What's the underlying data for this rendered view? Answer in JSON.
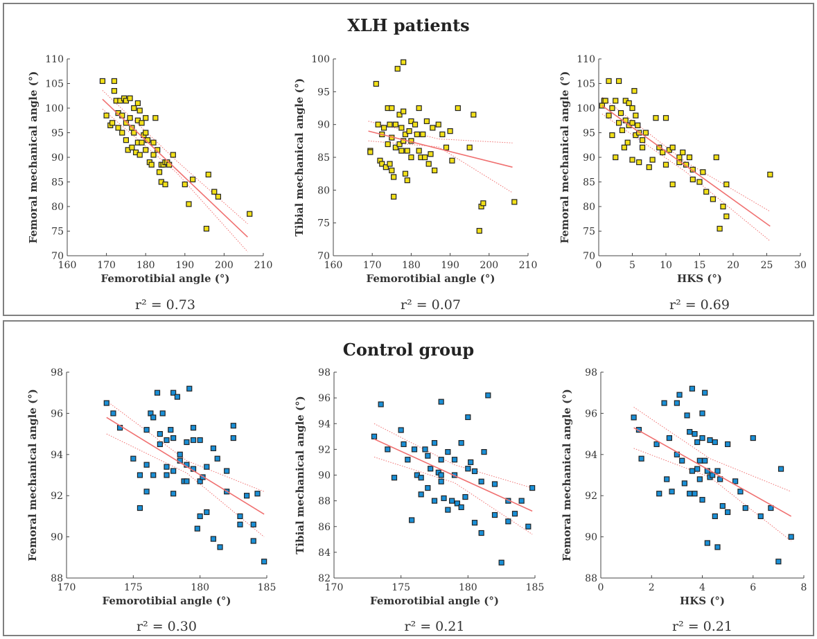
{
  "groups": {
    "xlh_title": "XLH patients",
    "control_title": "Control group"
  },
  "colors": {
    "xlh_marker": "#f2e019",
    "control_marker": "#1a8fd6",
    "regression_line": "#f07070",
    "frame": "#7f7f7f"
  },
  "chart_data": [
    {
      "type": "scatter",
      "group": "XLH patients",
      "xlabel": "Femorotibial angle (°)",
      "ylabel": "Femoral mechanical angle (°)",
      "xlim": [
        160,
        210
      ],
      "ylim": [
        70,
        110
      ],
      "xticks": [
        160,
        170,
        180,
        190,
        200,
        210
      ],
      "yticks": [
        70,
        75,
        80,
        85,
        90,
        95,
        100,
        105,
        110
      ],
      "r2": "r² = 0.73",
      "marker_color": "#f2e019",
      "fit": {
        "x0": 169,
        "y0": 101.8,
        "x1": 206,
        "y1": 73.8
      },
      "ci_upper": [
        [
          169,
          103.6
        ],
        [
          188,
          89.2
        ],
        [
          206,
          76.5
        ]
      ],
      "ci_lower": [
        [
          169,
          99.8
        ],
        [
          188,
          86.8
        ],
        [
          206,
          70.8
        ]
      ],
      "x": [
        169,
        170,
        171,
        171.5,
        172,
        172,
        172.5,
        173,
        173,
        173.5,
        174,
        174,
        174.5,
        175,
        175,
        175,
        175.5,
        176,
        176,
        176.5,
        176.5,
        177,
        177,
        177.5,
        178,
        178,
        178,
        178.5,
        178.5,
        179,
        179,
        179.5,
        180,
        180,
        180,
        180.5,
        181,
        181.5,
        182,
        182,
        182.5,
        183,
        183.5,
        184,
        184,
        184.5,
        185,
        185,
        185.5,
        186,
        187,
        190,
        191,
        192,
        195.5,
        196,
        197.5,
        198.5,
        206.5
      ],
      "y": [
        105.5,
        98.5,
        96.5,
        97,
        105.5,
        103.5,
        101.5,
        99,
        96,
        101.5,
        98.5,
        95,
        102,
        101.5,
        97,
        93.5,
        91.5,
        102,
        98,
        96,
        92,
        100,
        95,
        91,
        101,
        97.5,
        93,
        99.5,
        90.5,
        97,
        93,
        94.5,
        98,
        95,
        91.5,
        93.5,
        89,
        88.5,
        90.5,
        93,
        98,
        91.5,
        87,
        88.5,
        85,
        88.5,
        84.5,
        89,
        89,
        88.5,
        90.5,
        84.5,
        80.5,
        85.5,
        75.5,
        86.5,
        83,
        82,
        78.5
      ]
    },
    {
      "type": "scatter",
      "group": "XLH patients",
      "xlabel": "Femorotibial angle (°)",
      "ylabel": "Tibial mechanical angle (°)",
      "xlim": [
        160,
        210
      ],
      "ylim": [
        70,
        100
      ],
      "xticks": [
        160,
        170,
        180,
        190,
        200,
        210
      ],
      "yticks": [
        70,
        75,
        80,
        85,
        90,
        95,
        100
      ],
      "r2": "r² = 0.07",
      "marker_color": "#f2e019",
      "fit": {
        "x0": 169,
        "y0": 89,
        "x1": 206,
        "y1": 83.5
      },
      "ci_upper": [
        [
          169,
          90.5
        ],
        [
          187,
          87.8
        ],
        [
          206,
          87.2
        ]
      ],
      "ci_lower": [
        [
          169,
          87.5
        ],
        [
          187,
          86.6
        ],
        [
          206,
          79.6
        ]
      ],
      "x": [
        169.5,
        169.5,
        171,
        171.5,
        172,
        172.5,
        172.5,
        173,
        173.5,
        174,
        174,
        174.5,
        174.5,
        175,
        175,
        175,
        175.5,
        175.5,
        176,
        176,
        176.5,
        177,
        177,
        177.5,
        177.5,
        178,
        178,
        178,
        178.5,
        178.5,
        179,
        179,
        179.5,
        180,
        180,
        180,
        181,
        181.5,
        182,
        182,
        182.5,
        183,
        183.5,
        184,
        184.5,
        185,
        185.5,
        186,
        187,
        188,
        189,
        190,
        190.5,
        192,
        195,
        196,
        197.5,
        198,
        198.5,
        206.5
      ],
      "y": [
        86,
        85.8,
        96.2,
        90,
        84.5,
        88.5,
        84,
        89.5,
        83.5,
        92.5,
        87,
        90,
        84,
        92.5,
        88,
        83,
        79,
        82,
        86.5,
        90,
        98.5,
        87,
        91.5,
        86,
        89.5,
        99.5,
        92,
        87.5,
        88.5,
        82.5,
        86,
        81.5,
        89,
        87.5,
        90.5,
        85,
        90,
        88.5,
        92.5,
        86,
        85,
        88.5,
        85,
        90.5,
        84,
        85.5,
        89.5,
        83,
        90,
        88.5,
        86.5,
        89,
        84.5,
        92.5,
        86.5,
        91.5,
        73.8,
        77.5,
        78,
        78.2
      ]
    },
    {
      "type": "scatter",
      "group": "XLH patients",
      "xlabel": "HKS (°)",
      "ylabel": "Femoral mechanical angle (°)",
      "xlim": [
        0,
        30
      ],
      "ylim": [
        70,
        110
      ],
      "xticks": [
        0,
        5,
        10,
        15,
        20,
        25,
        30
      ],
      "yticks": [
        70,
        75,
        80,
        85,
        90,
        95,
        100,
        105,
        110
      ],
      "r2": "r² = 0.69",
      "marker_color": "#f2e019",
      "fit": {
        "x0": 0.5,
        "y0": 100.5,
        "x1": 25.5,
        "y1": 76
      },
      "ci_upper": [
        [
          0.5,
          102.2
        ],
        [
          13,
          89
        ],
        [
          25.5,
          79
        ]
      ],
      "ci_lower": [
        [
          0.5,
          98.8
        ],
        [
          13,
          87
        ],
        [
          25.5,
          73
        ]
      ],
      "x": [
        0.5,
        0.8,
        1,
        1.5,
        1.5,
        2,
        2,
        2.5,
        2.5,
        3,
        3,
        3.3,
        3.5,
        3.8,
        4,
        4,
        4.3,
        4.5,
        4.5,
        5,
        5,
        5,
        5.3,
        5.5,
        5.5,
        5.8,
        6,
        6,
        6.5,
        6.5,
        7,
        7.5,
        8,
        8.5,
        9,
        9.5,
        10,
        10,
        10.5,
        11,
        11,
        12,
        12,
        12.5,
        13,
        13.5,
        14,
        14,
        15,
        15.5,
        16,
        17,
        17.5,
        18,
        18.5,
        19,
        19,
        25.5
      ],
      "y": [
        100.5,
        101.5,
        101.5,
        105.5,
        98.5,
        100,
        94.5,
        101.5,
        90,
        105.5,
        97,
        99,
        95.5,
        92,
        101.5,
        97.5,
        93,
        96.5,
        101,
        97,
        100,
        89.5,
        103.5,
        94.5,
        98.5,
        96.5,
        95,
        89,
        93.5,
        92,
        95,
        88,
        89.5,
        98,
        92,
        91,
        88.5,
        98,
        91.5,
        92,
        84.5,
        89,
        90,
        91,
        88.5,
        90,
        87.5,
        85.5,
        85,
        87,
        83,
        81.5,
        90,
        75.5,
        80,
        84.5,
        78,
        86.5
      ]
    },
    {
      "type": "scatter",
      "group": "Control group",
      "xlabel": "Femorotibial angle (°)",
      "ylabel": "Femoral mechanical angle (°)",
      "xlim": [
        170,
        185
      ],
      "ylim": [
        88,
        98
      ],
      "xticks": [
        170,
        175,
        180,
        185
      ],
      "yticks": [
        88,
        90,
        92,
        94,
        96,
        98
      ],
      "r2": "r² = 0.30",
      "marker_color": "#1a8fd6",
      "fit": {
        "x0": 173,
        "y0": 95.8,
        "x1": 184.8,
        "y1": 91.1
      },
      "ci_upper": [
        [
          173,
          96.6
        ],
        [
          179,
          93.7
        ],
        [
          184.8,
          92.2
        ]
      ],
      "ci_lower": [
        [
          173,
          95
        ],
        [
          179,
          93.1
        ],
        [
          184.8,
          90
        ]
      ],
      "x": [
        173,
        173.5,
        174,
        175,
        175.5,
        175.5,
        176,
        176,
        176,
        176.3,
        176.5,
        176.5,
        176.8,
        177,
        177,
        177.2,
        177.5,
        177.5,
        177.5,
        177.8,
        178,
        178,
        178,
        178,
        178.3,
        178.5,
        178.5,
        178.8,
        179,
        179,
        179,
        179.2,
        179.5,
        179.5,
        179.5,
        179.8,
        180,
        180,
        180,
        180.2,
        180.5,
        180.5,
        181,
        181,
        181.3,
        181.5,
        182,
        182,
        182.5,
        182.5,
        183,
        183,
        183.5,
        184,
        184,
        184.3,
        184.8
      ],
      "y": [
        96.5,
        96,
        95.3,
        93.8,
        93,
        91.4,
        93.5,
        92.2,
        95.2,
        96,
        95.8,
        93,
        97,
        95,
        94.5,
        96,
        94.7,
        93.4,
        93,
        95.2,
        97,
        94.8,
        93.2,
        92.1,
        96.8,
        94,
        93.7,
        92.7,
        94.6,
        93.5,
        92.7,
        97.2,
        95.3,
        94.7,
        93.3,
        90.4,
        94.7,
        92.7,
        91,
        92.9,
        93.4,
        91.2,
        94.3,
        89.9,
        93.8,
        89.5,
        93.2,
        92.2,
        94.8,
        95.4,
        91,
        90.6,
        92,
        89.8,
        90.6,
        92.1,
        88.8
      ]
    },
    {
      "type": "scatter",
      "group": "Control group",
      "xlabel": "Femorotibial angle (°)",
      "ylabel": "Tibial mechanical angle (°)",
      "xlim": [
        170,
        185
      ],
      "ylim": [
        82,
        98
      ],
      "xticks": [
        170,
        175,
        180,
        185
      ],
      "yticks": [
        82,
        84,
        86,
        88,
        90,
        92,
        94,
        96,
        98
      ],
      "r2": "r² = 0.21",
      "marker_color": "#1a8fd6",
      "fit": {
        "x0": 173,
        "y0": 92.8,
        "x1": 184.8,
        "y1": 87.2
      },
      "ci_upper": [
        [
          173,
          94
        ],
        [
          179,
          90.8
        ],
        [
          184.8,
          89
        ]
      ],
      "ci_lower": [
        [
          173,
          91.4
        ],
        [
          179,
          89.4
        ],
        [
          184.8,
          85.4
        ]
      ],
      "x": [
        173,
        173.5,
        174,
        174.5,
        175,
        175.2,
        175.5,
        175.8,
        176,
        176.2,
        176.5,
        176.5,
        176.8,
        177,
        177,
        177.2,
        177.5,
        177.5,
        177.8,
        178,
        178,
        178,
        178,
        178.2,
        178.5,
        178.5,
        178.8,
        179,
        179,
        179.2,
        179.5,
        179.5,
        179.8,
        180,
        180,
        180.2,
        180.5,
        180.5,
        181,
        181,
        181.2,
        181.5,
        182,
        182,
        182.5,
        183,
        183,
        183.5,
        184,
        184.5,
        184.8
      ],
      "y": [
        93,
        95.5,
        92,
        89.8,
        93.5,
        92.4,
        91.2,
        86.5,
        92,
        90,
        89.8,
        88.5,
        92,
        91.5,
        89,
        90.5,
        92.5,
        88,
        90.2,
        95.7,
        91.2,
        90,
        89.5,
        88.2,
        91.8,
        87.3,
        88,
        91.2,
        90,
        87.8,
        92.5,
        87.5,
        88.3,
        94.5,
        90.5,
        91,
        90.3,
        86.3,
        89.5,
        85.5,
        91.8,
        96.2,
        86.9,
        89.3,
        83.2,
        88,
        86.4,
        87,
        88,
        86,
        89
      ]
    },
    {
      "type": "scatter",
      "group": "Control group",
      "xlabel": "HKS (°)",
      "ylabel": "Femoral mechanical angle (°)",
      "xlim": [
        0,
        8
      ],
      "ylim": [
        88,
        98
      ],
      "xticks": [
        0,
        2,
        4,
        6,
        8
      ],
      "yticks": [
        88,
        90,
        92,
        94,
        96,
        98
      ],
      "r2": "r² = 0.21",
      "marker_color": "#1a8fd6",
      "fit": {
        "x0": 1.3,
        "y0": 95.3,
        "x1": 7.5,
        "y1": 91
      },
      "ci_upper": [
        [
          1.3,
          96.3
        ],
        [
          4.3,
          93.8
        ],
        [
          7.5,
          92.2
        ]
      ],
      "ci_lower": [
        [
          1.3,
          94.3
        ],
        [
          4.3,
          92.9
        ],
        [
          7.5,
          89.8
        ]
      ],
      "x": [
        1.3,
        1.5,
        1.6,
        2.2,
        2.3,
        2.5,
        2.6,
        2.7,
        2.8,
        3,
        3,
        3.1,
        3.2,
        3.3,
        3.4,
        3.5,
        3.5,
        3.6,
        3.6,
        3.7,
        3.7,
        3.8,
        3.8,
        3.9,
        3.9,
        4,
        4,
        4,
        4.1,
        4.1,
        4.2,
        4.2,
        4.3,
        4.3,
        4.4,
        4.5,
        4.5,
        4.6,
        4.6,
        4.7,
        4.8,
        5,
        5,
        5.3,
        5.5,
        5.7,
        6,
        6.3,
        6.7,
        7,
        7.1,
        7.5
      ],
      "y": [
        95.8,
        95.2,
        93.8,
        94.5,
        92.1,
        96.5,
        92.8,
        94.8,
        92.2,
        96.5,
        94,
        96.9,
        93.7,
        92.6,
        95.9,
        95.1,
        92.1,
        97.2,
        93.2,
        95,
        92.1,
        94.6,
        93.3,
        93.7,
        92.8,
        96,
        94.8,
        91.8,
        97,
        93.7,
        93.2,
        89.7,
        94.7,
        92.9,
        93,
        94.6,
        91,
        93.2,
        89.5,
        92.8,
        91.5,
        94.5,
        91.2,
        92.7,
        92.2,
        91.4,
        94.8,
        91,
        91.4,
        88.8,
        93.3,
        90
      ]
    }
  ]
}
